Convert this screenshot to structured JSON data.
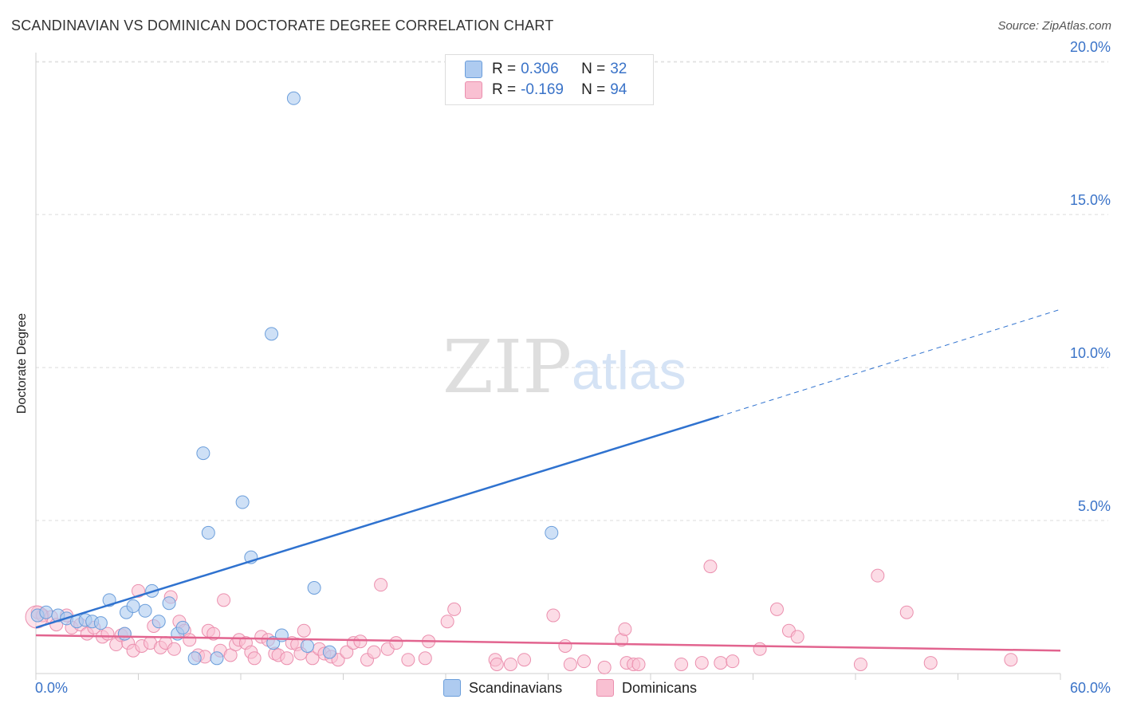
{
  "header": {
    "title": "SCANDINAVIAN VS DOMINICAN DOCTORATE DEGREE CORRELATION CHART",
    "source": "Source: ZipAtlas.com"
  },
  "watermark": {
    "zip": "ZIP",
    "atlas": "atlas"
  },
  "legend_top": {
    "rows": [
      {
        "r_label": "R = ",
        "r_value": "0.306",
        "n_label": "N = ",
        "n_value": "32"
      },
      {
        "r_label": "R = ",
        "r_value": "-0.169",
        "n_label": "N = ",
        "n_value": "94"
      }
    ]
  },
  "legend_bottom": {
    "items": [
      "Scandinavians",
      "Dominicans"
    ]
  },
  "colors": {
    "scandinavian_fill": "#aecbf0",
    "scandinavian_stroke": "#6b9edb",
    "scandinavian_line": "#2f72cf",
    "dominican_fill": "#f9c0d2",
    "dominican_stroke": "#eb8fae",
    "dominican_line": "#e2648f",
    "tick_label": "#3a73c8"
  },
  "chart_data": {
    "type": "scatter",
    "title": "SCANDINAVIAN VS DOMINICAN DOCTORATE DEGREE CORRELATION CHART",
    "xlabel": "",
    "ylabel": "Doctorate Degree",
    "xlim": [
      0,
      60
    ],
    "ylim": [
      0,
      20.5
    ],
    "x_tick_labels": [
      "0.0%",
      "60.0%"
    ],
    "y_ticks": [
      5,
      10,
      15,
      20
    ],
    "y_tick_labels": [
      "5.0%",
      "10.0%",
      "15.0%",
      "20.0%"
    ],
    "grid": true,
    "series": [
      {
        "name": "Scandinavians",
        "r": 0.306,
        "n": 32,
        "trend": {
          "x0": 0,
          "y0": 1.5,
          "x1": 40,
          "y1": 8.4,
          "dash_to_x": 60,
          "dash_to_y": 11.9
        },
        "points": [
          [
            0.1,
            1.9
          ],
          [
            0.6,
            2.0
          ],
          [
            1.3,
            1.9
          ],
          [
            1.8,
            1.8
          ],
          [
            2.4,
            1.7
          ],
          [
            2.9,
            1.75
          ],
          [
            3.3,
            1.7
          ],
          [
            3.8,
            1.65
          ],
          [
            4.3,
            2.4
          ],
          [
            5.2,
            1.3
          ],
          [
            5.3,
            2.0
          ],
          [
            5.7,
            2.2
          ],
          [
            6.4,
            2.05
          ],
          [
            6.8,
            2.7
          ],
          [
            7.2,
            1.7
          ],
          [
            7.8,
            2.3
          ],
          [
            8.3,
            1.3
          ],
          [
            8.6,
            1.5
          ],
          [
            9.3,
            0.5
          ],
          [
            9.8,
            7.2
          ],
          [
            10.1,
            4.6
          ],
          [
            10.6,
            0.5
          ],
          [
            12.1,
            5.6
          ],
          [
            12.6,
            3.8
          ],
          [
            13.9,
            1.0
          ],
          [
            13.8,
            11.1
          ],
          [
            14.4,
            1.25
          ],
          [
            15.1,
            18.8
          ],
          [
            15.9,
            0.9
          ],
          [
            16.3,
            2.8
          ],
          [
            17.2,
            0.7
          ],
          [
            30.2,
            4.6
          ]
        ]
      },
      {
        "name": "Dominicans",
        "r": -0.169,
        "n": 94,
        "trend": {
          "x0": 0,
          "y0": 1.25,
          "x1": 60,
          "y1": 0.75
        },
        "points": [
          [
            0.1,
            2.0
          ],
          [
            0.4,
            1.9
          ],
          [
            0.9,
            1.85
          ],
          [
            1.2,
            1.6
          ],
          [
            1.8,
            1.9
          ],
          [
            2.1,
            1.5
          ],
          [
            2.6,
            1.6
          ],
          [
            3.0,
            1.3
          ],
          [
            3.4,
            1.5
          ],
          [
            3.9,
            1.2
          ],
          [
            4.2,
            1.3
          ],
          [
            4.7,
            0.95
          ],
          [
            5.0,
            1.25
          ],
          [
            5.2,
            1.3
          ],
          [
            5.4,
            1.0
          ],
          [
            5.7,
            0.75
          ],
          [
            6.0,
            2.7
          ],
          [
            6.2,
            0.9
          ],
          [
            6.7,
            1.0
          ],
          [
            6.9,
            1.55
          ],
          [
            7.3,
            0.85
          ],
          [
            7.6,
            1.0
          ],
          [
            7.9,
            2.5
          ],
          [
            8.1,
            0.8
          ],
          [
            8.4,
            1.7
          ],
          [
            8.7,
            1.4
          ],
          [
            9.0,
            1.1
          ],
          [
            9.5,
            0.6
          ],
          [
            9.9,
            0.55
          ],
          [
            10.1,
            1.4
          ],
          [
            10.4,
            1.3
          ],
          [
            10.8,
            0.75
          ],
          [
            11.0,
            2.4
          ],
          [
            11.4,
            0.6
          ],
          [
            11.7,
            0.95
          ],
          [
            11.9,
            1.1
          ],
          [
            12.3,
            1.0
          ],
          [
            12.6,
            0.7
          ],
          [
            12.8,
            0.5
          ],
          [
            13.2,
            1.2
          ],
          [
            13.6,
            1.1
          ],
          [
            14.0,
            0.65
          ],
          [
            14.2,
            0.6
          ],
          [
            14.7,
            0.5
          ],
          [
            15.0,
            1.0
          ],
          [
            15.3,
            0.95
          ],
          [
            15.5,
            0.65
          ],
          [
            15.7,
            1.4
          ],
          [
            16.2,
            0.5
          ],
          [
            16.6,
            0.8
          ],
          [
            16.9,
            0.65
          ],
          [
            17.3,
            0.55
          ],
          [
            17.7,
            0.45
          ],
          [
            18.2,
            0.7
          ],
          [
            18.6,
            1.0
          ],
          [
            19.0,
            1.05
          ],
          [
            19.4,
            0.45
          ],
          [
            19.8,
            0.7
          ],
          [
            20.2,
            2.9
          ],
          [
            20.6,
            0.8
          ],
          [
            21.1,
            1.0
          ],
          [
            21.8,
            0.45
          ],
          [
            22.8,
            0.5
          ],
          [
            23.0,
            1.05
          ],
          [
            24.1,
            1.7
          ],
          [
            24.5,
            2.1
          ],
          [
            26.9,
            0.45
          ],
          [
            27.0,
            0.3
          ],
          [
            27.8,
            0.3
          ],
          [
            28.6,
            0.45
          ],
          [
            30.3,
            1.9
          ],
          [
            31.0,
            0.9
          ],
          [
            31.3,
            0.3
          ],
          [
            32.1,
            0.4
          ],
          [
            33.3,
            0.2
          ],
          [
            34.3,
            1.1
          ],
          [
            34.5,
            1.45
          ],
          [
            34.6,
            0.35
          ],
          [
            35.0,
            0.3
          ],
          [
            35.3,
            0.3
          ],
          [
            37.8,
            0.3
          ],
          [
            39.0,
            0.35
          ],
          [
            39.5,
            3.5
          ],
          [
            40.1,
            0.35
          ],
          [
            40.8,
            0.4
          ],
          [
            42.4,
            0.8
          ],
          [
            43.4,
            2.1
          ],
          [
            44.1,
            1.4
          ],
          [
            44.6,
            1.2
          ],
          [
            48.3,
            0.3
          ],
          [
            49.3,
            3.2
          ],
          [
            51.0,
            2.0
          ],
          [
            52.4,
            0.35
          ],
          [
            57.1,
            0.45
          ]
        ]
      }
    ]
  }
}
